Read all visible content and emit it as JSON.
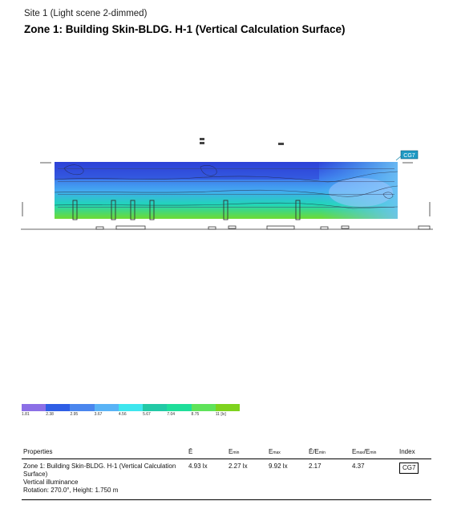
{
  "header": {
    "site": "Site 1 (Light scene 2-dimmed)",
    "zone_title": "Zone 1: Building Skin-BLDG. H-1  (Vertical Calculation Surface)"
  },
  "plot": {
    "tag": "CG7"
  },
  "scale": {
    "colors": [
      "#8b6fe6",
      "#2f5ee5",
      "#4a86ee",
      "#59b3f6",
      "#3ee6ee",
      "#22c9a6",
      "#1fde9a",
      "#5fe35a",
      "#7ed31e"
    ],
    "labels": [
      "1.81",
      "2.38",
      "2.95",
      "3.67",
      "4.56",
      "5.67",
      "7.04",
      "8.75",
      "11 [lx]"
    ]
  },
  "properties": {
    "headers": {
      "properties": "Properties",
      "avg": "Ē",
      "emin_main": "E",
      "emin_sub": "min",
      "emax_main": "E",
      "emax_sub": "max",
      "u0_main": "Ē/E",
      "u0_sub": "min",
      "ratio_main1": "E",
      "ratio_sub1": "max",
      "ratio_main2": "/E",
      "ratio_sub2": "min",
      "index": "Index"
    },
    "row": {
      "line1": "Zone 1: Building Skin-BLDG. H-1  (Vertical Calculation",
      "line2": "Surface)",
      "line3": "Vertical illuminance",
      "line4": "Rotation: 270.0°, Height: 1.750 m",
      "avg": "4.93 lx",
      "emin": "2.27 lx",
      "emax": "9.92 lx",
      "u0": "2.17",
      "ratio": "4.37",
      "index": "CG7"
    }
  }
}
